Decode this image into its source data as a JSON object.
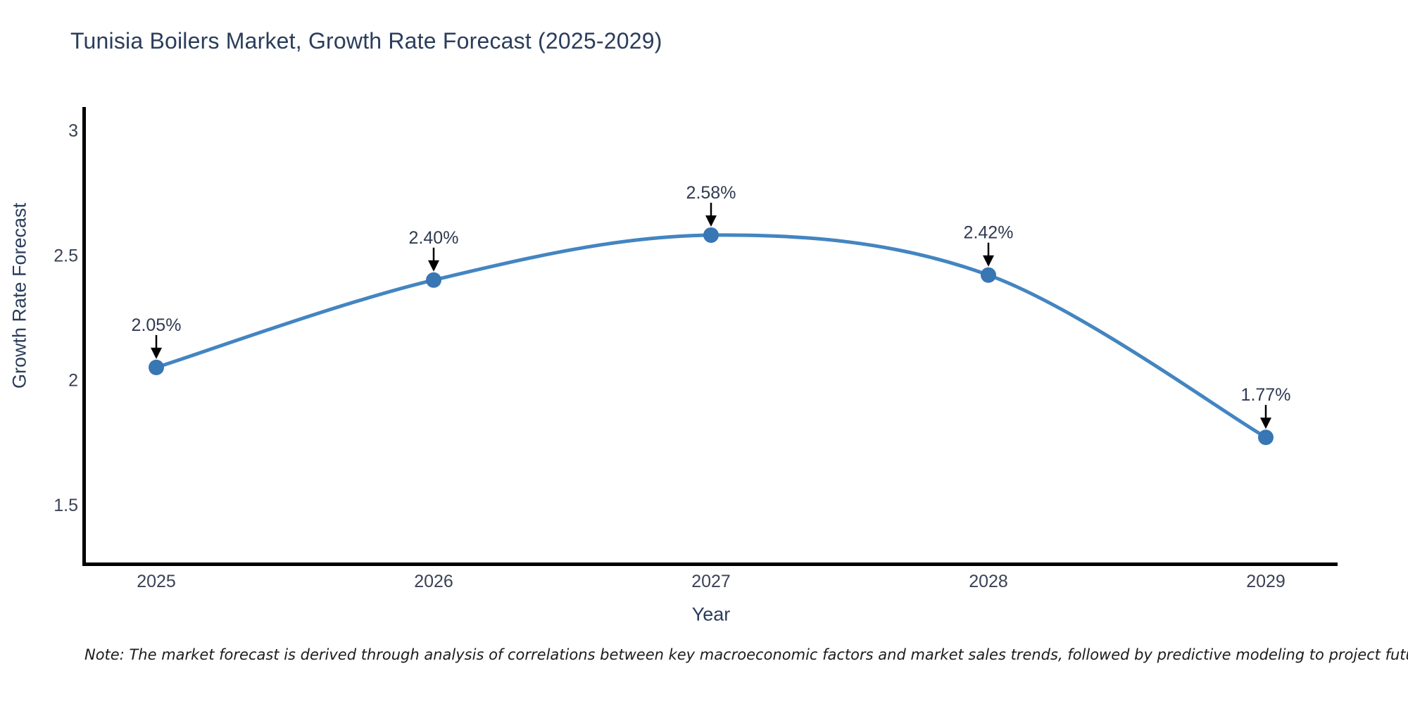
{
  "title": "Tunisia Boilers Market, Growth Rate Forecast (2025-2029)",
  "note": "Note: The market forecast is derived through analysis of correlations between key macroeconomic factors and market sales trends, followed by predictive modeling to project future sales",
  "chart_data": {
    "type": "line",
    "title": "Tunisia Boilers Market, Growth Rate Forecast (2025-2029)",
    "categories": [
      "2025",
      "2026",
      "2027",
      "2028",
      "2029"
    ],
    "x": [
      2025,
      2026,
      2027,
      2028,
      2029
    ],
    "values": [
      2.05,
      2.4,
      2.58,
      2.42,
      1.77
    ],
    "point_labels": [
      "2.05%",
      "2.40%",
      "2.58%",
      "2.42%",
      "1.77%"
    ],
    "xlabel": "Year",
    "ylabel": "Growth Rate Forecast",
    "yticks": [
      1.5,
      2,
      2.5,
      3
    ],
    "ytick_labels": [
      "1.5",
      "2",
      "2.5",
      "3"
    ],
    "ylim": [
      1.26,
      3.09
    ],
    "grid": false,
    "legend_position": "none",
    "line_shape": "spline",
    "annotations_arrow": "black-down-arrow",
    "colors": {
      "line": "#4385c1",
      "marker": "#3876b4",
      "arrow": "#000000",
      "axis_spine": "#000000",
      "text": "#2b3d5b"
    }
  }
}
